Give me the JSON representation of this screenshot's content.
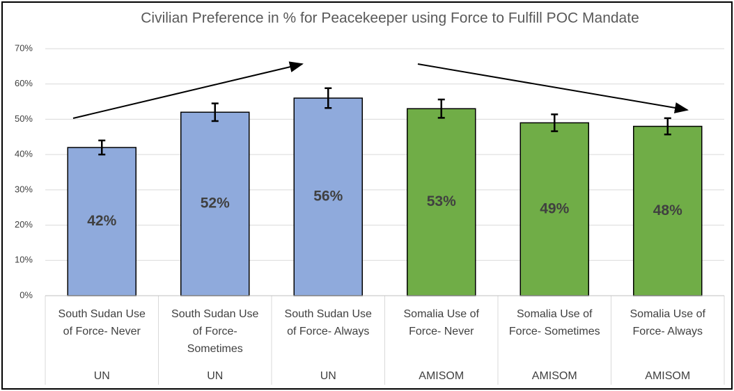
{
  "chart_data": {
    "type": "bar",
    "title": "Civilian Preference in % for Peacekeeper using Force to Fulfill POC Mandate",
    "categories": [
      "South Sudan Use\nof Force- Never",
      "South Sudan Use\nof Force-\nSometimes",
      "South Sudan Use\nof Force- Always",
      "Somalia  Use of\nForce- Never",
      "Somalia Use of\nForce- Sometimes",
      "Somalia  Use of\nForce- Always"
    ],
    "groups": [
      "UN",
      "UN",
      "UN",
      "AMISOM",
      "AMISOM",
      "AMISOM"
    ],
    "values": [
      42,
      52,
      56,
      53,
      49,
      48
    ],
    "value_labels": [
      "42%",
      "52%",
      "56%",
      "53%",
      "49%",
      "48%"
    ],
    "errors": [
      2,
      2.5,
      2.8,
      2.6,
      2.4,
      2.3
    ],
    "colors": [
      "#8faadc",
      "#8faadc",
      "#8faadc",
      "#70ad47",
      "#70ad47",
      "#70ad47"
    ],
    "ylim": [
      0,
      70
    ],
    "yticks": [
      {
        "value": 0,
        "label": "0%"
      },
      {
        "value": 10,
        "label": "10%"
      },
      {
        "value": 20,
        "label": "20%"
      },
      {
        "value": 30,
        "label": "30%"
      },
      {
        "value": 40,
        "label": "40%"
      },
      {
        "value": 50,
        "label": "50%"
      },
      {
        "value": 60,
        "label": "60%"
      },
      {
        "value": 70,
        "label": "70%"
      }
    ],
    "grid": true
  }
}
